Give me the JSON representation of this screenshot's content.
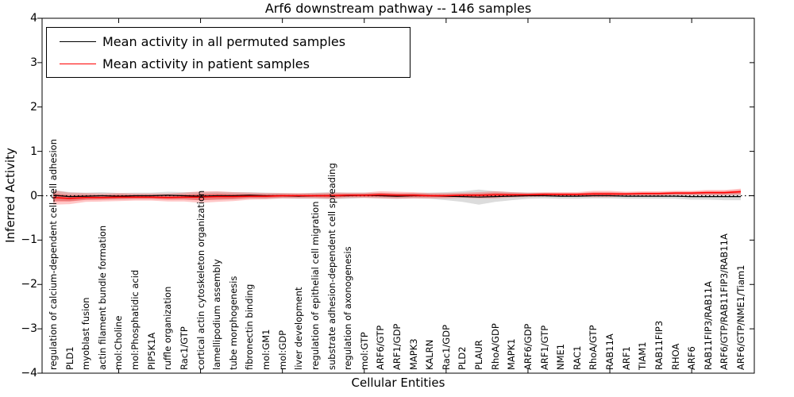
{
  "title": "Arf6 downstream pathway -- 146 samples",
  "legend": {
    "items": [
      {
        "label": "Mean activity in all permuted samples",
        "color": "#000000"
      },
      {
        "label": "Mean activity in patient samples",
        "color": "#ff0000"
      }
    ]
  },
  "axes": {
    "ylabel": "Inferred Activity",
    "xlabel": "Cellular Entities"
  },
  "chart_data": {
    "type": "line",
    "title": "Arf6 downstream pathway -- 146 samples",
    "xlabel": "Cellular Entities",
    "ylabel": "Inferred Activity",
    "ylim": [
      -4,
      4
    ],
    "yticks": [
      -4,
      -3,
      -2,
      -1,
      0,
      1,
      2,
      3,
      4
    ],
    "ytick_labels": [
      "−4",
      "−3",
      "−2",
      "−1",
      "0",
      "1",
      "2",
      "3",
      "4"
    ],
    "grid": false,
    "legend_position": "upper left",
    "zero_line": {
      "style": "dotted",
      "color": "#000000",
      "y": 0
    },
    "categories": [
      "regulation of calcium-dependent cell-cell adhesion",
      "PLD1",
      "myoblast fusion",
      "actin filament bundle formation",
      "mol:Choline",
      "mol:Phosphatidic acid",
      "PIP5K1A",
      "ruffle organization",
      "Rac1/GTP",
      "cortical actin cytoskeleton organization",
      "lamellipodium assembly",
      "tube morphogenesis",
      "fibronectin binding",
      "mol:GM1",
      "mol:GDP",
      "liver development",
      "regulation of epithelial cell migration",
      "substrate adhesion-dependent cell spreading",
      "regulation of axonogenesis",
      "mol:GTP",
      "ARF6/GTP",
      "ARF1/GDP",
      "MAPK3",
      "KALRN",
      "Rac1/GDP",
      "PLD2",
      "PLAUR",
      "RhoA/GDP",
      "MAPK1",
      "ARF6/GDP",
      "ARF1/GTP",
      "NME1",
      "RAC1",
      "RhoA/GTP",
      "RAB11A",
      "ARF1",
      "TIAM1",
      "RAB11FIP3",
      "RHOA",
      "ARF6",
      "RAB11FIP3/RAB11A",
      "ARF6/GTP/RAB11FIP3/RAB11A",
      "ARF6/GTP/NME1/Tiam1"
    ],
    "series": [
      {
        "name": "Mean activity in all permuted samples",
        "color": "#000000",
        "values": [
          0.01,
          -0.02,
          -0.01,
          0.0,
          -0.01,
          0.0,
          0.0,
          0.01,
          0.0,
          -0.01,
          0.0,
          0.0,
          0.01,
          0.0,
          0.0,
          -0.01,
          0.0,
          0.0,
          0.0,
          0.01,
          0.0,
          -0.01,
          0.0,
          0.0,
          -0.01,
          -0.02,
          -0.03,
          -0.02,
          -0.01,
          0.0,
          0.0,
          -0.01,
          -0.01,
          0.0,
          0.0,
          -0.01,
          -0.01,
          -0.01,
          -0.01,
          -0.02,
          -0.02,
          -0.02,
          -0.02
        ],
        "band_std": [
          0.12,
          0.1,
          0.08,
          0.08,
          0.07,
          0.07,
          0.07,
          0.08,
          0.08,
          0.09,
          0.09,
          0.08,
          0.07,
          0.07,
          0.06,
          0.06,
          0.07,
          0.08,
          0.07,
          0.06,
          0.06,
          0.06,
          0.06,
          0.07,
          0.09,
          0.12,
          0.17,
          0.12,
          0.09,
          0.07,
          0.06,
          0.06,
          0.06,
          0.06,
          0.06,
          0.06,
          0.06,
          0.06,
          0.06,
          0.07,
          0.07,
          0.08,
          0.08
        ],
        "band_color": "#808080"
      },
      {
        "name": "Mean activity in patient samples",
        "color": "#ff0000",
        "values": [
          -0.04,
          -0.06,
          -0.04,
          -0.04,
          -0.03,
          -0.03,
          -0.03,
          -0.04,
          -0.03,
          -0.03,
          -0.02,
          -0.02,
          -0.01,
          -0.01,
          0.0,
          0.0,
          0.0,
          0.0,
          0.01,
          0.01,
          0.02,
          0.01,
          0.01,
          0.0,
          0.0,
          0.01,
          0.01,
          0.02,
          0.02,
          0.02,
          0.03,
          0.03,
          0.03,
          0.04,
          0.04,
          0.04,
          0.05,
          0.05,
          0.06,
          0.06,
          0.07,
          0.07,
          0.09
        ],
        "band_std": [
          0.16,
          0.13,
          0.1,
          0.09,
          0.09,
          0.08,
          0.08,
          0.09,
          0.1,
          0.13,
          0.12,
          0.1,
          0.08,
          0.07,
          0.06,
          0.06,
          0.06,
          0.07,
          0.06,
          0.06,
          0.08,
          0.08,
          0.07,
          0.06,
          0.06,
          0.06,
          0.07,
          0.08,
          0.06,
          0.05,
          0.05,
          0.05,
          0.05,
          0.07,
          0.07,
          0.05,
          0.05,
          0.05,
          0.05,
          0.05,
          0.06,
          0.06,
          0.07
        ],
        "band_color": "#ff0000"
      }
    ]
  }
}
